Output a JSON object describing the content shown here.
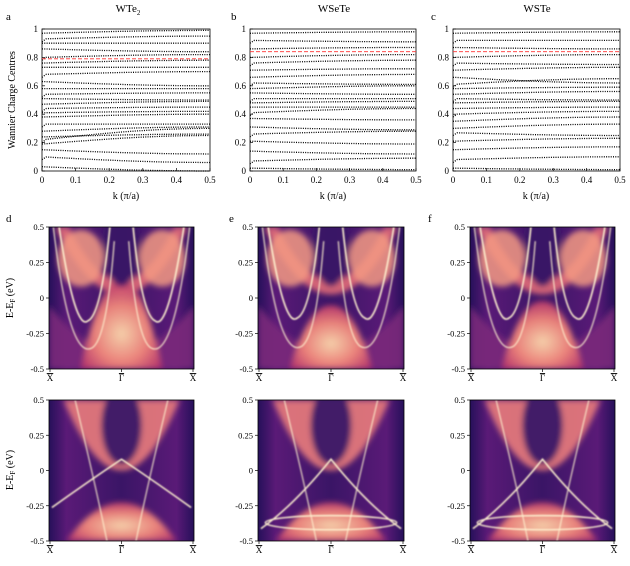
{
  "panel_letters": [
    "a",
    "b",
    "c",
    "d",
    "e",
    "f"
  ],
  "wcc": {
    "titles": [
      "WTe",
      "WSeTe",
      "WSTe"
    ],
    "title_sub": [
      "2",
      "",
      ""
    ],
    "ylabel": "Wannier Charge Centres",
    "xlabel": "k (π/a)",
    "y_ticks": [
      "0",
      "0.2",
      "0.4",
      "0.6",
      "0.8",
      "1"
    ],
    "x_ticks": [
      "0",
      "0.1",
      "0.2",
      "0.3",
      "0.4",
      "0.5"
    ],
    "dashed_line_y": [
      0.79,
      0.84,
      0.84
    ],
    "dashed_color": "#ff3333"
  },
  "bands": {
    "ylabel": "E-E",
    "ylabel_sub": "F",
    "ylabel_unit": " (eV)",
    "y_ticks": [
      "0.5",
      "0.25",
      "0",
      "-0.25",
      "-0.5"
    ],
    "k_labels": [
      "X",
      "Γ",
      "X"
    ],
    "colors": {
      "dark": "#2a0f5e",
      "mid": "#c1406b",
      "bright": "#ffd0a6",
      "line": "#fff2d0"
    }
  },
  "chart_data": [
    {
      "type": "scatter",
      "panel": "a",
      "title": "WTe2",
      "xlabel": "k (π/a)",
      "ylabel": "Wannier Charge Centres",
      "xlim": [
        0,
        0.5
      ],
      "ylim": [
        0,
        1
      ],
      "reference_line_y": 0.79
    },
    {
      "type": "scatter",
      "panel": "b",
      "title": "WSeTe",
      "xlabel": "k (π/a)",
      "xlim": [
        0,
        0.5
      ],
      "ylim": [
        0,
        1
      ],
      "reference_line_y": 0.84
    },
    {
      "type": "scatter",
      "panel": "c",
      "title": "WSTe",
      "xlabel": "k (π/a)",
      "xlim": [
        0,
        0.5
      ],
      "ylim": [
        0,
        1
      ],
      "reference_line_y": 0.84
    },
    {
      "type": "heatmap",
      "panel": "d",
      "ylabel": "E-EF (eV)",
      "ylim": [
        -0.5,
        0.5
      ],
      "x_labels": [
        "X",
        "Γ",
        "X"
      ]
    },
    {
      "type": "heatmap",
      "panel": "e",
      "ylim": [
        -0.5,
        0.5
      ],
      "x_labels": [
        "X",
        "Γ",
        "X"
      ]
    },
    {
      "type": "heatmap",
      "panel": "f",
      "ylim": [
        -0.5,
        0.5
      ],
      "x_labels": [
        "X",
        "Γ",
        "X"
      ]
    }
  ]
}
